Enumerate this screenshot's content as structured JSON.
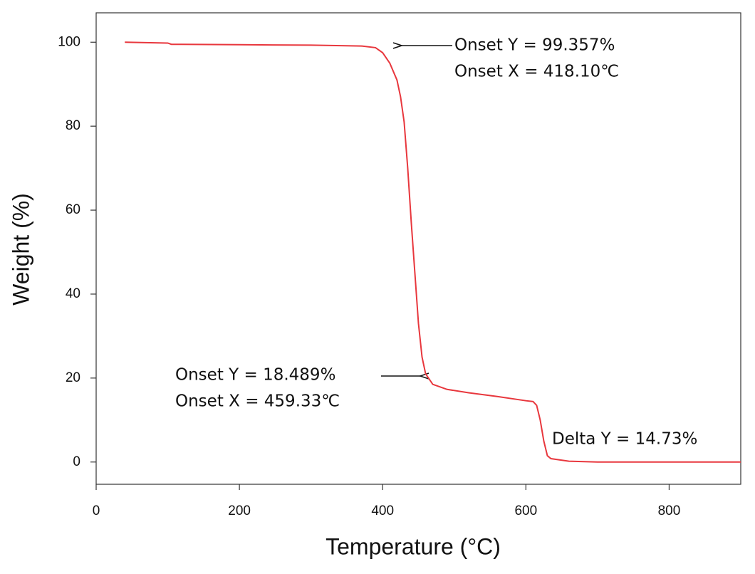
{
  "chart_data": {
    "type": "line",
    "xlabel": "Temperature (°C)",
    "ylabel": "Weight (%)",
    "x": [
      40,
      100,
      105,
      200,
      300,
      370,
      390,
      400,
      410,
      420,
      425,
      430,
      435,
      440,
      445,
      450,
      455,
      460,
      470,
      490,
      520,
      560,
      600,
      610,
      615,
      620,
      625,
      630,
      635,
      660,
      700,
      800,
      900
    ],
    "values": [
      100,
      99.8,
      99.5,
      99.4,
      99.3,
      99.1,
      98.7,
      97.5,
      95,
      91,
      87,
      81,
      70,
      57,
      45,
      33,
      25,
      21,
      18.5,
      17.3,
      16.5,
      15.6,
      14.6,
      14.4,
      13.5,
      10,
      5,
      1.5,
      0.8,
      0.2,
      0,
      0,
      0
    ],
    "color": "#e8373d",
    "xlim": [
      0,
      900
    ],
    "ylim": [
      -5.3,
      107
    ],
    "xticks": [
      0,
      200,
      400,
      600,
      800
    ],
    "yticks": [
      0,
      20,
      40,
      60,
      80,
      100
    ],
    "annotations": [
      "Onset Y = 99.357%",
      "Onset X = 418.10℃",
      "Onset Y = 18.489%",
      "Onset X = 459.33℃",
      "Delta Y = 14.73%"
    ]
  }
}
